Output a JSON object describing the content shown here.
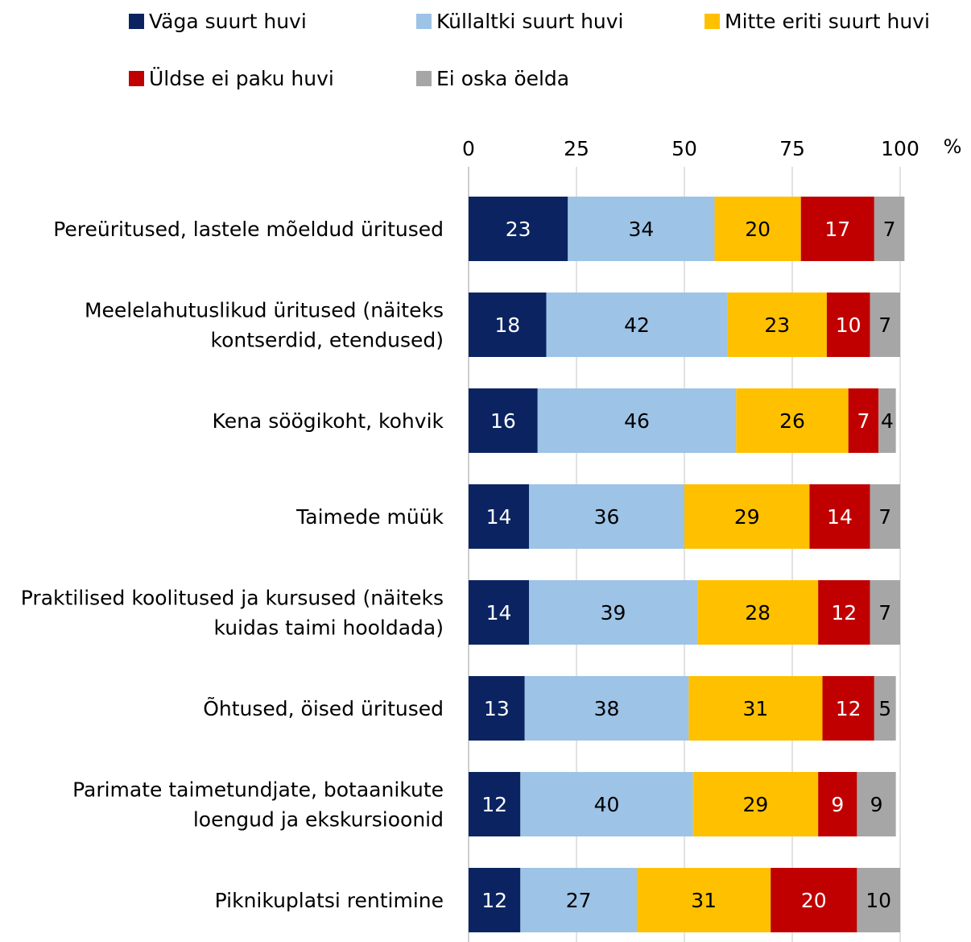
{
  "legend": [
    {
      "label": "Väga suurt huvi",
      "color": "#0b2461"
    },
    {
      "label": "Küllaltki suurt huvi",
      "color": "#9dc3e6"
    },
    {
      "label": "Mitte eriti suurt huvi",
      "color": "#ffc000"
    },
    {
      "label": "Üldse ei paku huvi",
      "color": "#c00000"
    },
    {
      "label": "Ei oska öelda",
      "color": "#a6a6a6"
    }
  ],
  "chart_data": {
    "type": "bar",
    "orientation": "horizontal",
    "stacked": true,
    "xlim": [
      0,
      100
    ],
    "xticks": [
      0,
      25,
      50,
      75,
      100
    ],
    "xunit": "%",
    "legend_position": "top",
    "grid": true,
    "categories": [
      [
        "Pereüritused, lastele mõeldud üritused"
      ],
      [
        "Meelelahutuslikud üritused (näiteks",
        "kontserdid, etendused)"
      ],
      [
        "Kena söögikoht, kohvik"
      ],
      [
        "Taimede müük"
      ],
      [
        "Praktilised koolitused ja kursused (näiteks",
        "kuidas taimi hooldada)"
      ],
      [
        "Õhtused, öised üritused"
      ],
      [
        "Parimate taimetundjate, botaanikute",
        "loengud ja ekskursioonid"
      ],
      [
        "Piknikuplatsi rentimine"
      ]
    ],
    "series": [
      {
        "name": "Väga suurt huvi",
        "color": "#0b2461",
        "label_color": "#ffffff",
        "values": [
          23,
          18,
          16,
          14,
          14,
          13,
          12,
          12
        ]
      },
      {
        "name": "Küllaltki suurt huvi",
        "color": "#9dc3e6",
        "label_color": "#000000",
        "values": [
          34,
          42,
          46,
          36,
          39,
          38,
          40,
          27
        ]
      },
      {
        "name": "Mitte eriti suurt huvi",
        "color": "#ffc000",
        "label_color": "#000000",
        "values": [
          20,
          23,
          26,
          29,
          28,
          31,
          29,
          31
        ]
      },
      {
        "name": "Üldse ei paku huvi",
        "color": "#c00000",
        "label_color": "#ffffff",
        "values": [
          17,
          10,
          7,
          14,
          12,
          12,
          9,
          20
        ]
      },
      {
        "name": "Ei oska öelda",
        "color": "#a6a6a6",
        "label_color": "#000000",
        "values": [
          7,
          7,
          4,
          7,
          7,
          5,
          9,
          10
        ]
      }
    ]
  }
}
